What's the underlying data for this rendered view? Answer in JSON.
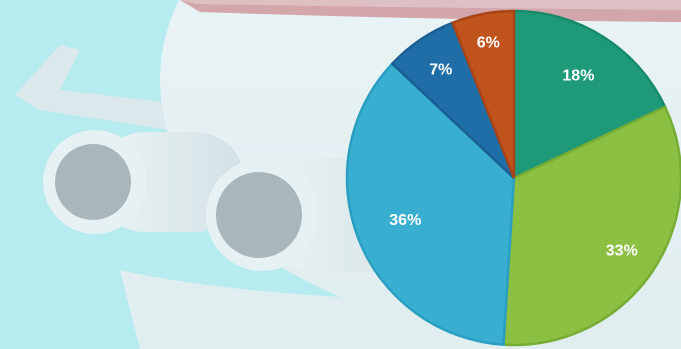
{
  "chart_data": {
    "type": "pie",
    "title": "",
    "legend": "none",
    "slices": [
      {
        "label": "18%",
        "value": 18,
        "color": "#1f9a78",
        "edge": "#178a6a"
      },
      {
        "label": "33%",
        "value": 33,
        "color": "#8bc043",
        "edge": "#76ad34"
      },
      {
        "label": "36%",
        "value": 36,
        "color": "#38aed0",
        "edge": "#2a9fc2"
      },
      {
        "label": "7%",
        "value": 7,
        "color": "#1f6ea8",
        "edge": "#195f93"
      },
      {
        "label": "6%",
        "value": 6,
        "color": "#c1531d",
        "edge": "#a84416"
      }
    ]
  },
  "background": {
    "sky_color": "#b6ebf0",
    "illustration": "airplane"
  }
}
